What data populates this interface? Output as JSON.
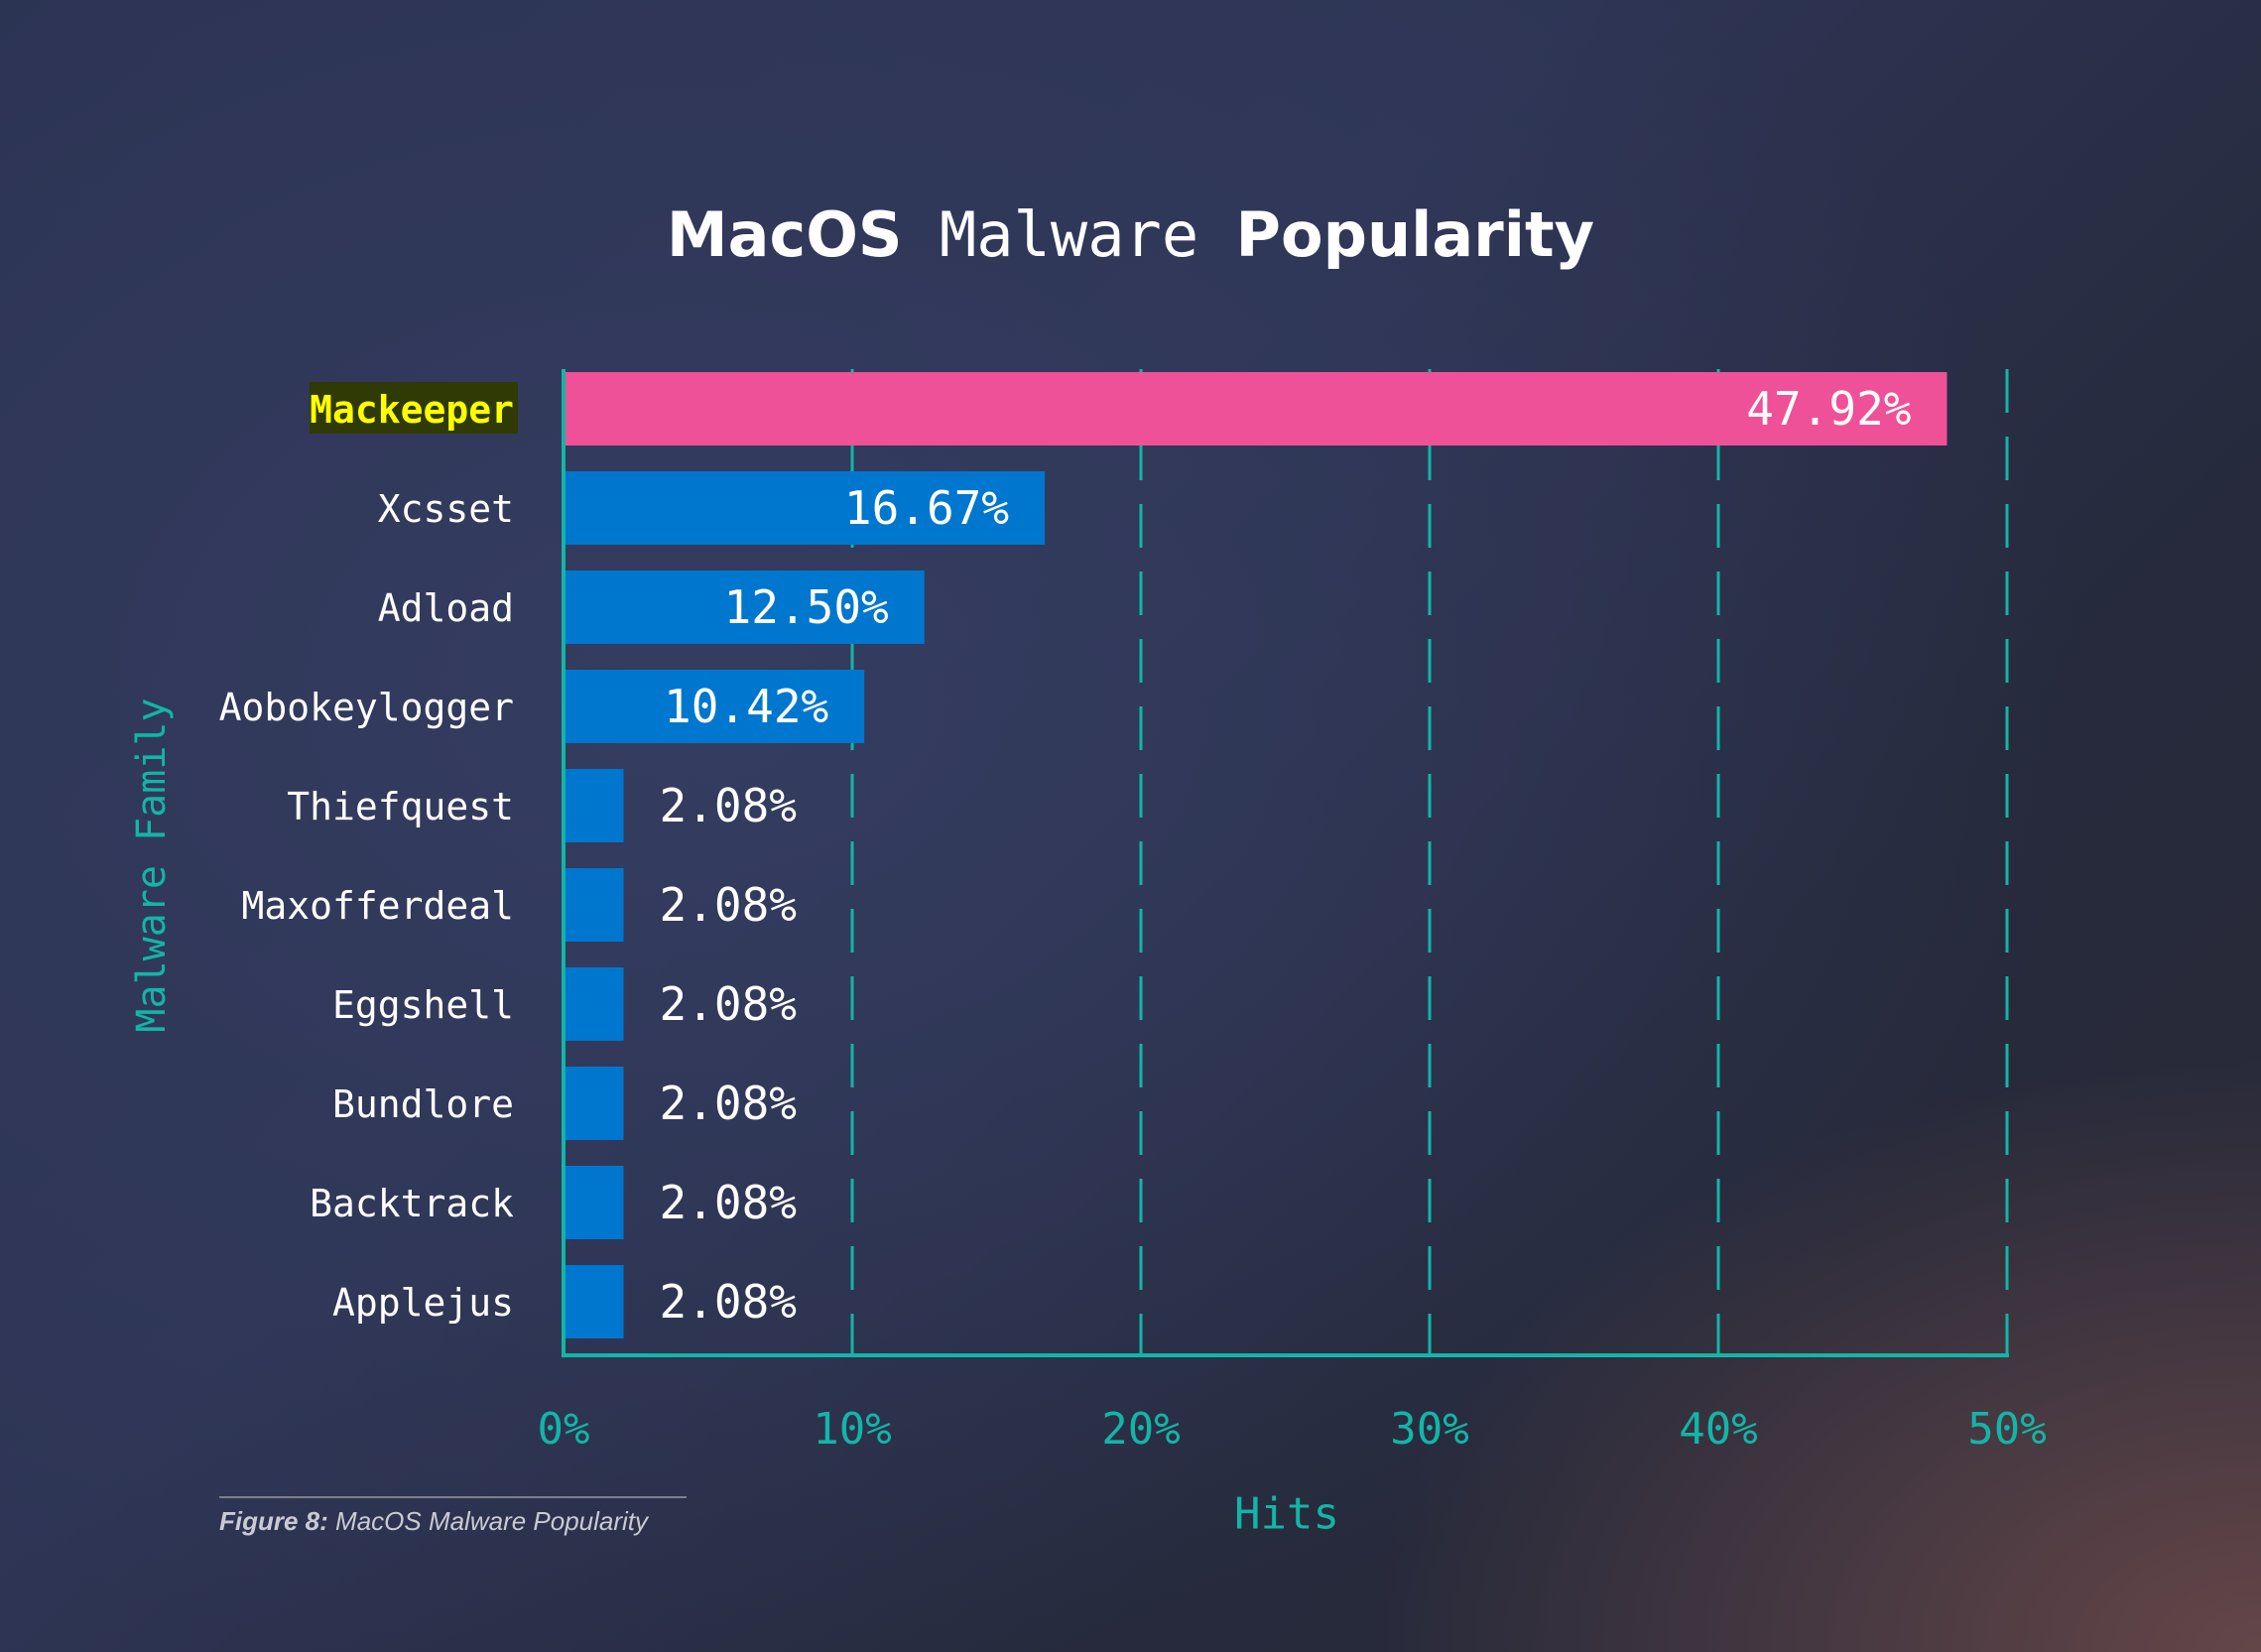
{
  "chart_data": {
    "type": "bar",
    "orientation": "horizontal",
    "title": {
      "part1": "MacOS",
      "part2": "Malware",
      "part3": "Popularity"
    },
    "xlabel": "Hits",
    "ylabel": "Malware Family",
    "xlim": [
      0,
      50
    ],
    "xticks": [
      "0%",
      "10%",
      "20%",
      "30%",
      "40%",
      "50%"
    ],
    "grid": "vertical dashed",
    "categories": [
      "Mackeeper",
      "Xcsset",
      "Adload",
      "Aobokeylogger",
      "Thiefquest",
      "Maxofferdeal",
      "Eggshell",
      "Bundlore",
      "Backtrack",
      "Applejus"
    ],
    "values": [
      47.92,
      16.67,
      12.5,
      10.42,
      2.08,
      2.08,
      2.08,
      2.08,
      2.08,
      2.08
    ],
    "data_labels": [
      "47.92%",
      "16.67%",
      "12.50%",
      "10.42%",
      "2.08%",
      "2.08%",
      "2.08%",
      "2.08%",
      "2.08%",
      "2.08%"
    ],
    "highlighted": "Mackeeper",
    "colors": {
      "bar": "#0077cf",
      "highlight_bar": "#ef5198",
      "highlight_label": "#ffff00",
      "highlight_label_bg": "#2f3a05",
      "axis": "#13b5a6"
    }
  },
  "caption": {
    "label": "Figure 8:",
    "text": "MacOS Malware Popularity"
  }
}
